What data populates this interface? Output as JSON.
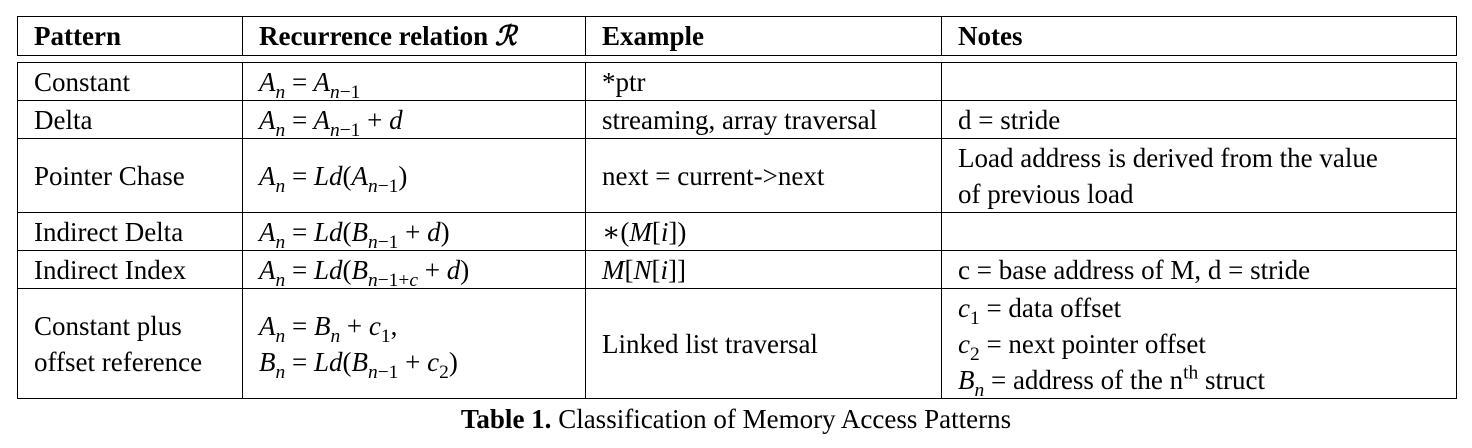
{
  "table": {
    "headers": {
      "pattern": "Pattern",
      "recurrence": "Recurrence relation",
      "recurrence_symbol": "ℛ",
      "example": "Example",
      "notes": "Notes"
    },
    "rows": [
      {
        "pattern": "Constant",
        "recurrence": "A_n = A_{n−1}",
        "example": "*ptr",
        "notes": ""
      },
      {
        "pattern": "Delta",
        "recurrence": "A_n = A_{n−1} + d",
        "example": "streaming, array traversal",
        "notes": "d = stride"
      },
      {
        "pattern": "Pointer Chase",
        "recurrence": "A_n = Ld(A_{n−1})",
        "example": "next = current->next",
        "notes": [
          "Load address is derived from the value",
          "of previous load"
        ]
      },
      {
        "pattern": "Indirect Delta",
        "recurrence": "A_n = Ld(B_{n−1} + d)",
        "example": "∗(M[i])",
        "notes": ""
      },
      {
        "pattern": "Indirect Index",
        "recurrence": "A_n = Ld(B_{n−1+c} + d)",
        "example": "M[N[i]]",
        "notes": "c = base address of M, d = stride"
      },
      {
        "pattern": [
          "Constant plus",
          "offset reference"
        ],
        "recurrence": [
          "A_n = B_n + c_1,",
          "B_n = Ld(B_{n−1} + c_2)"
        ],
        "example": "Linked list traversal",
        "notes": [
          "c_1 = data offset",
          "c_2 = next pointer offset",
          "B_n = address of the n^th struct"
        ]
      }
    ]
  },
  "caption": {
    "label": "Table 1.",
    "text": "Classification of Memory Access Patterns"
  }
}
